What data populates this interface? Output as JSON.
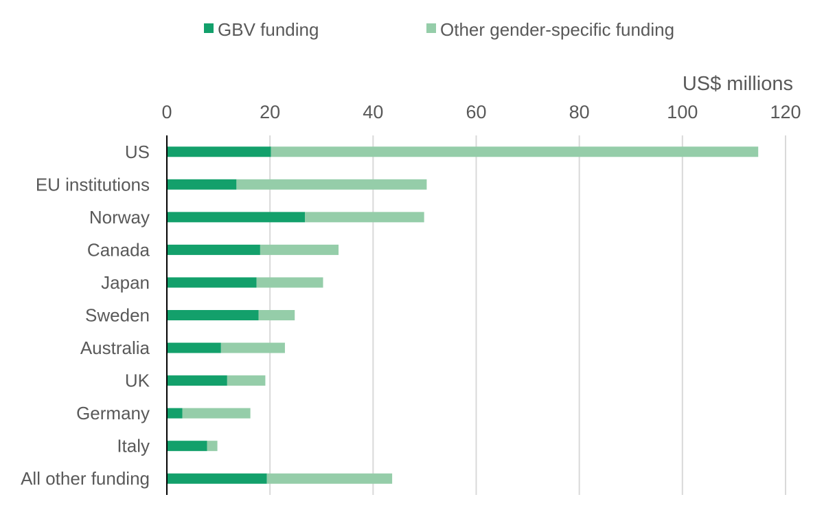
{
  "chart_data": {
    "type": "bar",
    "orientation": "horizontal",
    "stacked": true,
    "unit_label": "US$ millions",
    "categories": [
      "US",
      "EU institutions",
      "Norway",
      "Canada",
      "Japan",
      "Sweden",
      "Australia",
      "UK",
      "Germany",
      "Italy",
      "All other funding"
    ],
    "series": [
      {
        "name": "GBV funding",
        "color": "#13a06b",
        "values": [
          20.2,
          13.5,
          26.8,
          18.1,
          17.4,
          17.8,
          10.5,
          11.7,
          3.0,
          7.8,
          19.4
        ]
      },
      {
        "name": "Other gender-specific funding",
        "color": "#95cda9",
        "values": [
          94.5,
          36.9,
          23.1,
          15.2,
          12.9,
          7.0,
          12.4,
          7.4,
          13.2,
          2.0,
          24.3
        ]
      }
    ],
    "xlim": [
      0,
      120
    ],
    "xticks": [
      "0",
      "20",
      "40",
      "60",
      "80",
      "100",
      "120"
    ],
    "x_axis_position": "top",
    "legend": "top",
    "grid": true
  }
}
